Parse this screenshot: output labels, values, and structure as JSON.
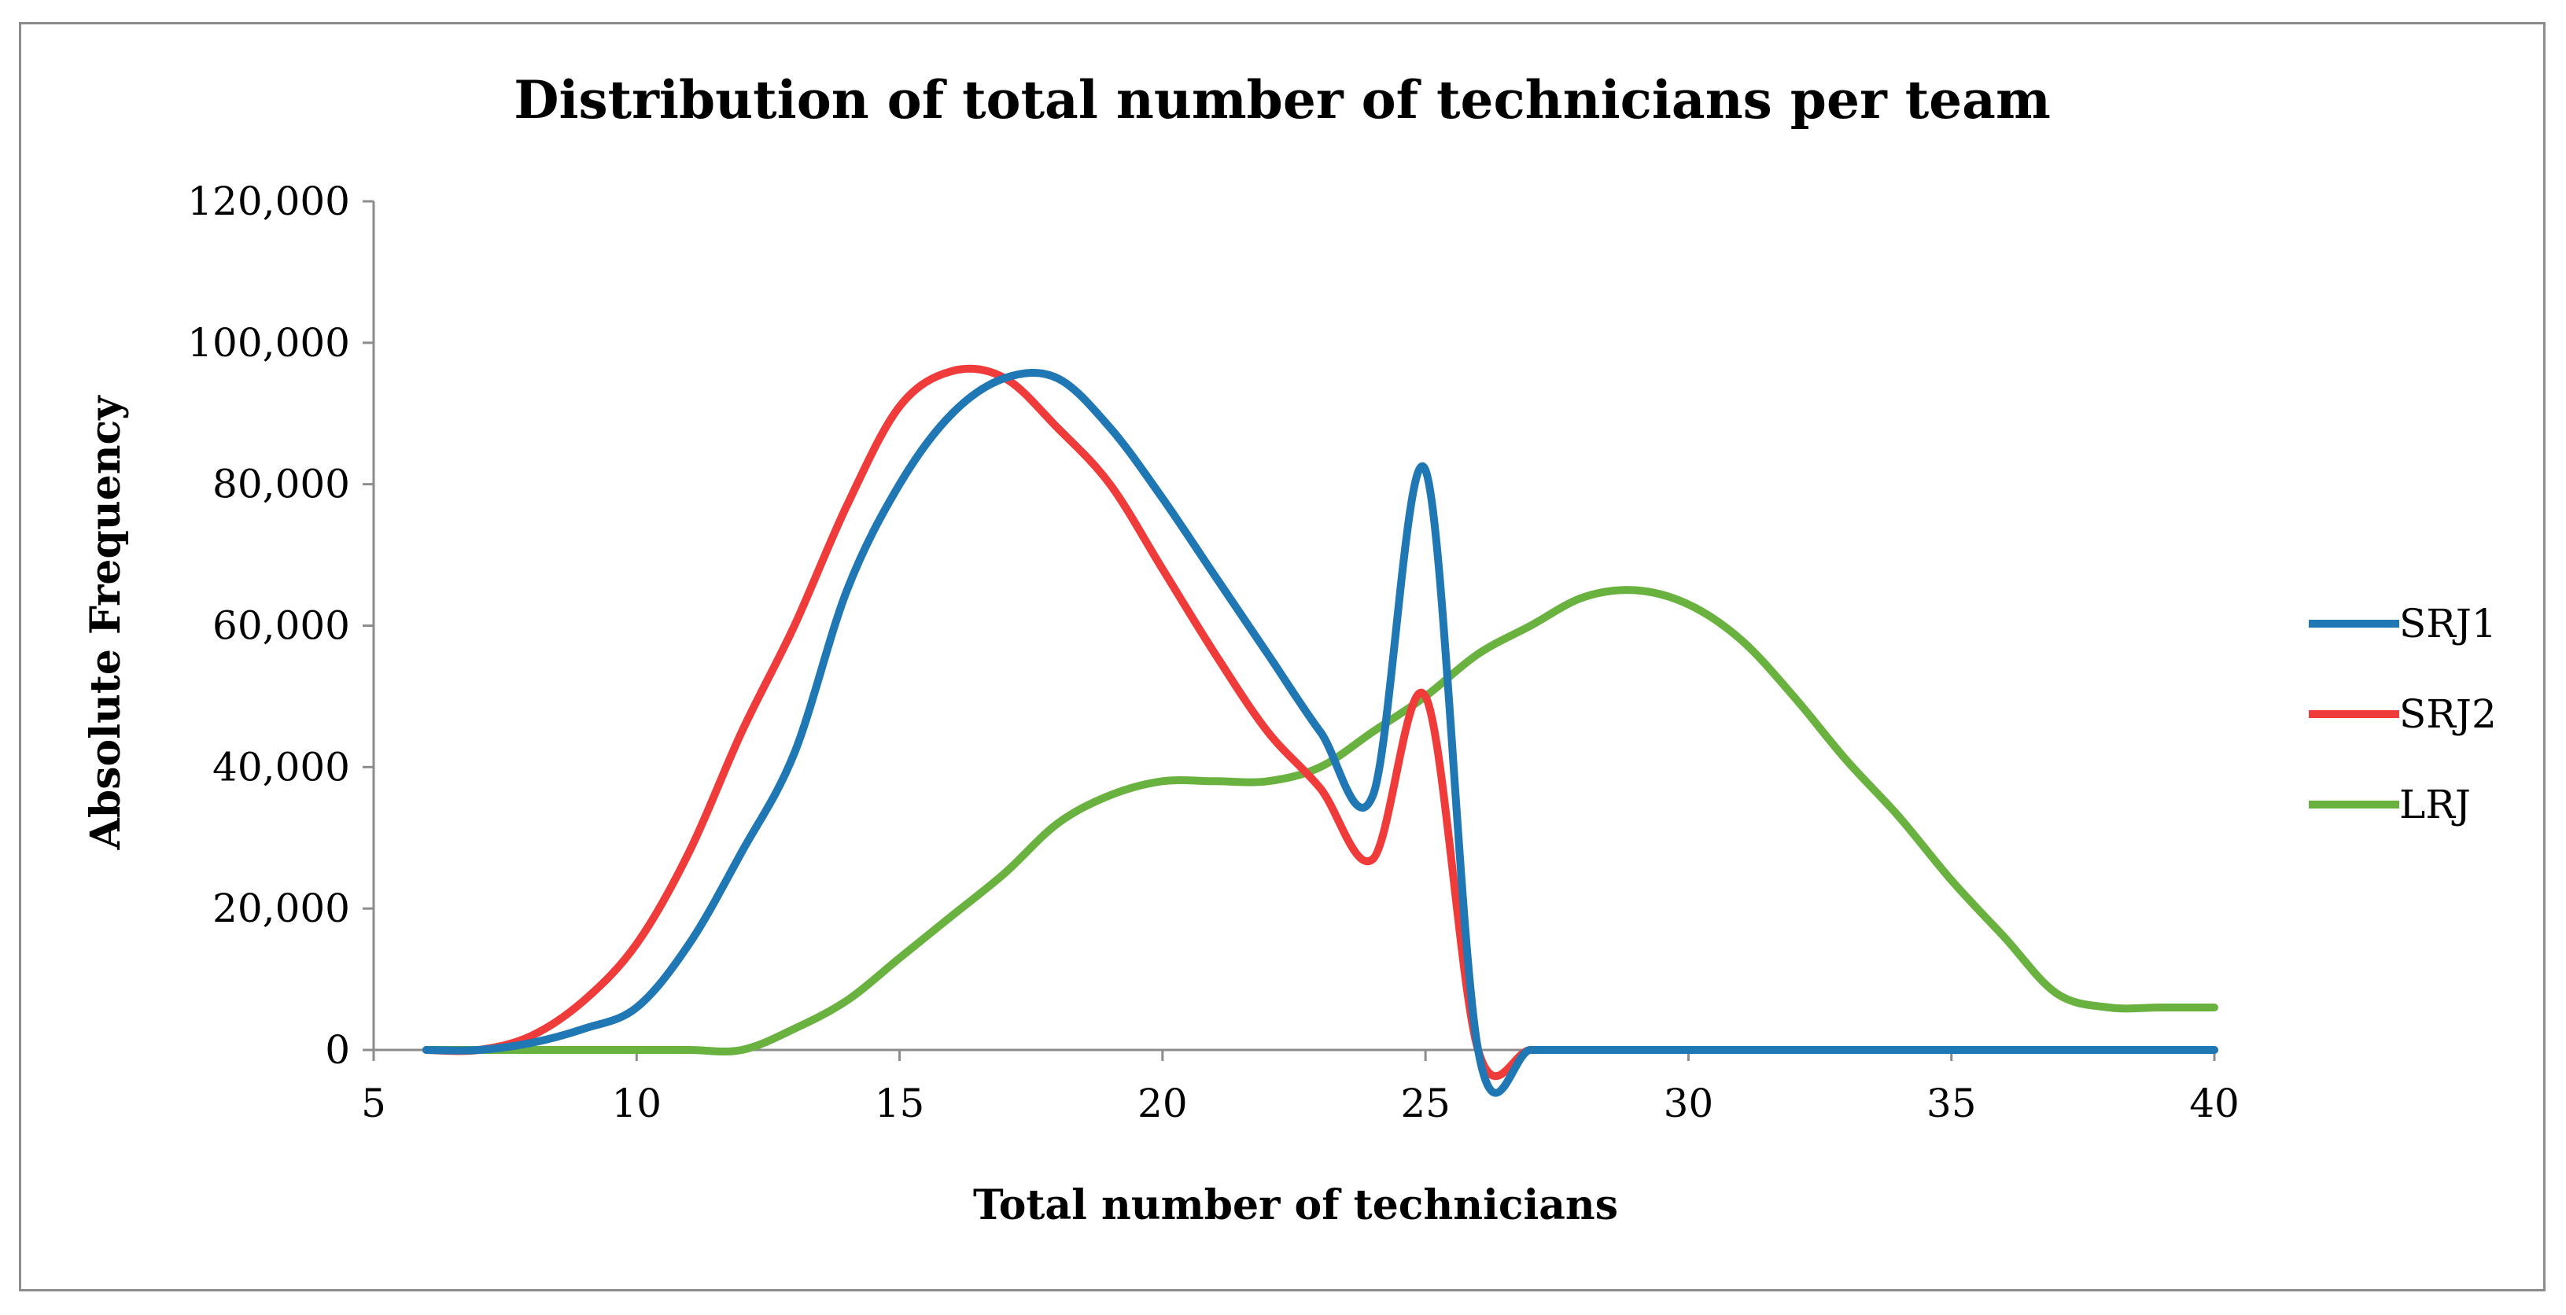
{
  "chart_data": {
    "type": "line",
    "title": "Distribution of total number of technicians per team",
    "xlabel": "Total number of technicians",
    "ylabel": "Absolute Frequency",
    "xlim": [
      5,
      40
    ],
    "ylim": [
      0,
      120000
    ],
    "x_ticks": [
      "5",
      "10",
      "15",
      "20",
      "25",
      "30",
      "35",
      "40"
    ],
    "y_ticks": [
      "0",
      "20,000",
      "40,000",
      "60,000",
      "80,000",
      "100,000",
      "120,000"
    ],
    "grid": false,
    "legend_position": "right",
    "x": [
      6,
      7,
      8,
      9,
      10,
      11,
      12,
      13,
      14,
      15,
      16,
      17,
      18,
      19,
      20,
      21,
      22,
      23,
      24,
      25,
      26,
      27,
      28,
      29,
      30,
      31,
      32,
      33,
      34,
      35,
      36,
      37,
      38,
      39,
      40
    ],
    "series": [
      {
        "name": "SRJ1",
        "color": "#1f77b4",
        "values": [
          0,
          0,
          1000,
          3000,
          6000,
          15000,
          28000,
          42000,
          65000,
          80000,
          90000,
          95000,
          95000,
          88000,
          78000,
          67000,
          56000,
          45000,
          36000,
          82000,
          0,
          0,
          0,
          0,
          0,
          0,
          0,
          0,
          0,
          0,
          0,
          0,
          0,
          0,
          0
        ]
      },
      {
        "name": "SRJ2",
        "color": "#f03b3b",
        "values": [
          0,
          0,
          2000,
          7000,
          15000,
          28000,
          45000,
          60000,
          77000,
          91000,
          96000,
          95000,
          88000,
          80000,
          68000,
          56000,
          45000,
          37000,
          27000,
          50000,
          0,
          0,
          0,
          0,
          0,
          0,
          0,
          0,
          0,
          0,
          0,
          0,
          0,
          0,
          0
        ]
      },
      {
        "name": "LRJ",
        "color": "#6ab23f",
        "values": [
          0,
          0,
          0,
          0,
          0,
          0,
          0,
          3000,
          7000,
          13000,
          19000,
          25000,
          32000,
          36000,
          38000,
          38000,
          38000,
          40000,
          45000,
          50000,
          56000,
          60000,
          64000,
          65000,
          63000,
          58000,
          50000,
          41000,
          33000,
          24000,
          16000,
          8000,
          6000,
          6000,
          6000
        ]
      }
    ]
  }
}
